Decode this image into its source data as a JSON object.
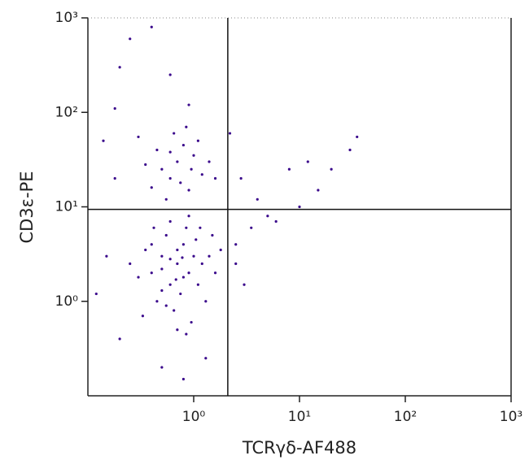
{
  "chart_data": {
    "type": "scatter",
    "x_label": "TCRγδ-AF488",
    "y_label": "CD3ε-PE",
    "xscale": "log",
    "yscale": "log",
    "xlim": [
      0.1,
      1000
    ],
    "ylim": [
      0.1,
      1000
    ],
    "xticks": [
      {
        "value": 1,
        "label": "10⁰"
      },
      {
        "value": 10,
        "label": "10¹"
      },
      {
        "value": 100,
        "label": "10²"
      },
      {
        "value": 1000,
        "label": "10³"
      }
    ],
    "yticks": [
      {
        "value": 1,
        "label": "10⁰"
      },
      {
        "value": 10,
        "label": "10¹"
      },
      {
        "value": 100,
        "label": "10²"
      },
      {
        "value": 1000,
        "label": "10³"
      }
    ],
    "quadrant_x": 2.1,
    "quadrant_y": 9.4,
    "color": "#3b0a8c",
    "x": [
      0.7,
      0.5,
      0.9,
      0.6,
      0.8,
      1.0,
      0.4,
      1.2,
      0.55,
      0.75,
      0.65,
      0.85,
      1.1,
      0.45,
      0.35,
      1.4,
      0.95,
      0.6,
      0.3,
      1.6,
      0.7,
      0.8,
      0.5,
      1.05,
      0.9,
      0.4,
      0.25,
      1.3,
      0.7,
      0.6,
      1.8,
      0.55,
      0.85,
      0.42,
      1.15,
      0.33,
      0.78,
      0.68,
      1.5,
      0.5,
      0.7,
      0.6,
      0.8,
      0.5,
      0.9,
      1.0,
      0.45,
      1.2,
      0.65,
      0.75,
      0.55,
      1.4,
      0.35,
      0.85,
      1.1,
      0.4,
      0.95,
      0.6,
      0.3,
      1.6,
      0.15,
      0.12,
      0.2,
      0.18,
      2.5,
      3.5,
      3,
      5,
      2.8,
      4,
      6,
      8,
      12,
      20,
      30,
      35,
      15,
      0.5,
      0.8,
      0.9,
      0.6,
      0.25,
      0.4,
      0.18,
      2.2,
      1.3,
      10,
      2.5,
      0.14,
      0.2
    ],
    "y": [
      2.5,
      3,
      2,
      1.5,
      4,
      3,
      2,
      2.5,
      5,
      1.2,
      0.8,
      6,
      1.5,
      1,
      3.5,
      3,
      0.6,
      7,
      1.8,
      2,
      0.5,
      1.8,
      2.2,
      4.5,
      8,
      4,
      2.5,
      1,
      3.5,
      2.8,
      3.5,
      0.9,
      0.45,
      6,
      6,
      0.7,
      2.9,
      1.7,
      5,
      1.3,
      30,
      20,
      45,
      25,
      15,
      35,
      40,
      22,
      60,
      18,
      12,
      30,
      28,
      70,
      50,
      16,
      25,
      38,
      55,
      20,
      3,
      1.2,
      0.4,
      20,
      4,
      6,
      1.5,
      8,
      20,
      12,
      7,
      25,
      30,
      25,
      40,
      55,
      15,
      0.2,
      0.15,
      120,
      250,
      600,
      800,
      110,
      60,
      0.25,
      10,
      2.5,
      50,
      300
    ]
  }
}
